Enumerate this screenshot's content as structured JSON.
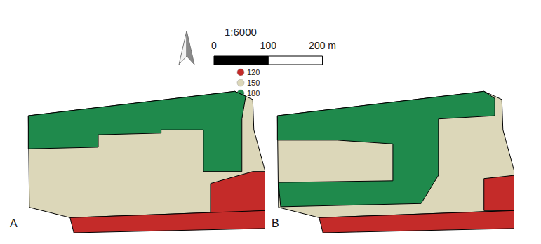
{
  "chart_data": {
    "type": "map",
    "scale_bar": {
      "ratio": "1:6000",
      "xlim": [
        0,
        200
      ],
      "ticks": [
        0,
        100,
        {
          "value": 200,
          "label": "200 m"
        }
      ]
    },
    "classes": [
      {
        "value": 120,
        "color": "#c42b29"
      },
      {
        "value": 150,
        "color": "#dcd7b9"
      },
      {
        "value": 180,
        "color": "#1f8a4c"
      }
    ],
    "tick_labels": false,
    "panels": [
      {
        "label": "A",
        "xlim": [
          0,
          440
        ],
        "ylim": [
          0,
          264
        ],
        "zones": [
          {
            "value": 150,
            "polygon": [
              [
                3,
                216
              ],
              [
                384,
                261
              ],
              [
                417,
                246
              ],
              [
                419,
                190
              ],
              [
                440,
                113
              ],
              [
                440,
                41
              ],
              [
                80,
                28
              ],
              [
                5,
                47
              ]
            ]
          },
          {
            "value": 180,
            "polygon": [
              [
                3,
                216
              ],
              [
                384,
                261
              ],
              [
                404,
                252
              ],
              [
                397,
                210
              ],
              [
                397,
                113
              ],
              [
                326,
                113
              ],
              [
                326,
                190
              ],
              [
                248,
                190
              ],
              [
                248,
                184
              ],
              [
                132,
                181
              ],
              [
                132,
                158
              ],
              [
                3,
                155
              ]
            ]
          },
          {
            "value": 120,
            "polygon": [
              [
                339,
                91
              ],
              [
                417,
                113
              ],
              [
                440,
                113
              ],
              [
                440,
                41
              ],
              [
                339,
                35
              ]
            ]
          },
          {
            "value": 120,
            "polygon": [
              [
                80,
                28
              ],
              [
                440,
                41
              ],
              [
                440,
                8
              ],
              [
                87,
                0
              ]
            ]
          }
        ]
      },
      {
        "label": "B",
        "xlim": [
          0,
          440
        ],
        "ylim": [
          0,
          264
        ],
        "zones": [
          {
            "value": 150,
            "polygon": [
              [
                3,
                216
              ],
              [
                384,
                261
              ],
              [
                417,
                246
              ],
              [
                419,
                190
              ],
              [
                440,
                113
              ],
              [
                440,
                41
              ],
              [
                80,
                28
              ],
              [
                5,
                47
              ]
            ]
          },
          {
            "value": 180,
            "polygon": [
              [
                3,
                216
              ],
              [
                384,
                261
              ],
              [
                404,
                248
              ],
              [
                404,
                216
              ],
              [
                300,
                210
              ],
              [
                300,
                106
              ],
              [
                268,
                54
              ],
              [
                9,
                48
              ],
              [
                5,
                93
              ],
              [
                216,
                96
              ],
              [
                216,
                164
              ],
              [
                113,
                171
              ],
              [
                3,
                171
              ]
            ]
          },
          {
            "value": 120,
            "polygon": [
              [
                384,
                100
              ],
              [
                440,
                106
              ],
              [
                440,
                41
              ],
              [
                384,
                41
              ]
            ]
          },
          {
            "value": 120,
            "polygon": [
              [
                80,
                28
              ],
              [
                440,
                41
              ],
              [
                440,
                8
              ],
              [
                87,
                0
              ]
            ]
          }
        ]
      }
    ]
  }
}
